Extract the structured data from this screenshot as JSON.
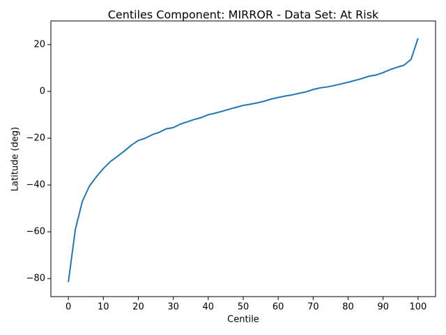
{
  "chart_data": {
    "type": "line",
    "title": "Centiles Component: MIRROR - Data Set: At Risk",
    "x_label": "Centile",
    "y_label": "Latitude (deg)",
    "x": [
      0,
      2,
      4,
      6,
      8,
      10,
      12,
      14,
      16,
      18,
      20,
      22,
      24,
      26,
      28,
      30,
      32,
      34,
      36,
      38,
      40,
      42,
      44,
      46,
      48,
      50,
      52,
      54,
      56,
      58,
      60,
      62,
      64,
      66,
      68,
      70,
      72,
      74,
      76,
      78,
      80,
      82,
      84,
      86,
      88,
      90,
      92,
      94,
      96,
      98,
      100
    ],
    "series": [
      {
        "color": "#1f77b4",
        "values": [
          -81.5,
          -59,
          -47,
          -40.5,
          -36.5,
          -33,
          -30,
          -27.8,
          -25.5,
          -23,
          -21,
          -20,
          -18.5,
          -17.5,
          -16,
          -15.5,
          -14,
          -13,
          -12,
          -11.2,
          -10,
          -9.3,
          -8.5,
          -7.6,
          -6.8,
          -6,
          -5.5,
          -4.9,
          -4.2,
          -3.3,
          -2.6,
          -2,
          -1.5,
          -0.8,
          -0.2,
          0.8,
          1.5,
          1.9,
          2.5,
          3.2,
          3.9,
          4.7,
          5.5,
          6.5,
          7,
          8,
          9.3,
          10.3,
          11.2,
          13.7,
          22.7
        ]
      }
    ],
    "xlim": [
      -5,
      105
    ],
    "ylim": [
      -87.7,
      30.1
    ],
    "xticks": [
      0,
      10,
      20,
      30,
      40,
      50,
      60,
      70,
      80,
      90,
      100
    ],
    "yticks": [
      {
        "value": -80,
        "label": "−80"
      },
      {
        "value": -60,
        "label": "−60"
      },
      {
        "value": -40,
        "label": "−40"
      },
      {
        "value": -20,
        "label": "−20"
      },
      0,
      20
    ],
    "grid": false
  }
}
